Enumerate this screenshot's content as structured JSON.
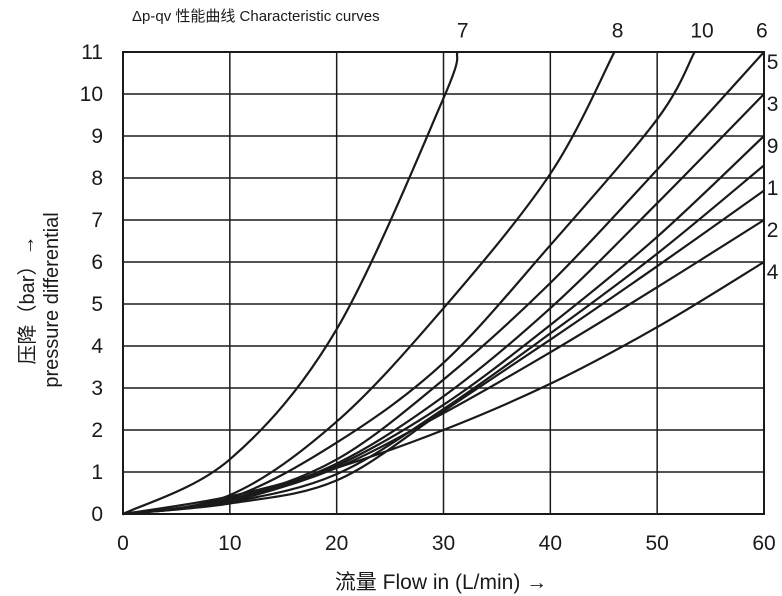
{
  "chart_data": {
    "type": "line",
    "title": "Δp-qv 性能曲线    Characteristic curves",
    "xlabel": "流量  Flow in (L/min) →",
    "ylabel_lines": [
      "压降（bar）→",
      "pressure differential"
    ],
    "xlim": [
      0,
      60
    ],
    "ylim": [
      0,
      11
    ],
    "x_ticks": [
      0,
      10,
      20,
      30,
      40,
      50,
      60
    ],
    "y_ticks": [
      0,
      1,
      2,
      3,
      4,
      5,
      6,
      7,
      8,
      9,
      10,
      11
    ],
    "grid": true,
    "series": [
      {
        "name": "7",
        "points": [
          [
            0,
            0
          ],
          [
            10,
            1.3
          ],
          [
            20,
            4.4
          ],
          [
            30,
            9.9
          ],
          [
            31.3,
            11
          ]
        ]
      },
      {
        "name": "8",
        "points": [
          [
            0,
            0
          ],
          [
            10,
            0.45
          ],
          [
            20,
            2.2
          ],
          [
            30,
            4.9
          ],
          [
            40,
            8.1
          ],
          [
            46,
            11
          ]
        ]
      },
      {
        "name": "10",
        "points": [
          [
            0,
            0
          ],
          [
            10,
            0.38
          ],
          [
            20,
            1.7
          ],
          [
            30,
            3.6
          ],
          [
            40,
            6.4
          ],
          [
            50,
            9.4
          ],
          [
            53.5,
            11
          ]
        ]
      },
      {
        "name": "6",
        "points": [
          [
            0,
            0
          ],
          [
            10,
            0.35
          ],
          [
            20,
            1.3
          ],
          [
            30,
            3.2
          ],
          [
            40,
            5.5
          ],
          [
            50,
            8.2
          ],
          [
            60,
            11
          ]
        ]
      },
      {
        "name": "5",
        "points": [
          [
            0,
            0
          ],
          [
            10,
            0.33
          ],
          [
            20,
            1.2
          ],
          [
            30,
            2.8
          ],
          [
            40,
            4.9
          ],
          [
            50,
            7.4
          ],
          [
            60,
            10
          ]
        ]
      },
      {
        "name": "3",
        "points": [
          [
            0,
            0
          ],
          [
            10,
            0.3
          ],
          [
            20,
            1.15
          ],
          [
            30,
            2.6
          ],
          [
            40,
            4.5
          ],
          [
            50,
            6.6
          ],
          [
            60,
            9
          ]
        ]
      },
      {
        "name": "9",
        "points": [
          [
            0,
            0
          ],
          [
            10,
            0.28
          ],
          [
            20,
            0.95
          ],
          [
            30,
            2.5
          ],
          [
            40,
            4.3
          ],
          [
            50,
            6.2
          ],
          [
            60,
            8.3
          ]
        ]
      },
      {
        "name": "1",
        "points": [
          [
            0,
            0
          ],
          [
            10,
            0.25
          ],
          [
            20,
            0.8
          ],
          [
            30,
            2.45
          ],
          [
            40,
            4.15
          ],
          [
            50,
            5.9
          ],
          [
            60,
            7.7
          ]
        ]
      },
      {
        "name": "2",
        "points": [
          [
            0,
            0
          ],
          [
            10,
            0.32
          ],
          [
            20,
            1.1
          ],
          [
            30,
            2.4
          ],
          [
            40,
            3.85
          ],
          [
            50,
            5.4
          ],
          [
            60,
            7
          ]
        ]
      },
      {
        "name": "4",
        "points": [
          [
            0,
            0
          ],
          [
            10,
            0.42
          ],
          [
            20,
            1.1
          ],
          [
            30,
            2.0
          ],
          [
            40,
            3.1
          ],
          [
            50,
            4.45
          ],
          [
            60,
            6
          ]
        ]
      }
    ],
    "curve_labels": [
      {
        "text": "7",
        "x": 31.8,
        "y": 11.35
      },
      {
        "text": "8",
        "x": 46.3,
        "y": 11.35
      },
      {
        "text": "10",
        "x": 54.2,
        "y": 11.35
      },
      {
        "text": "6",
        "x": 59.8,
        "y": 11.35
      },
      {
        "text": "5",
        "x": 60.8,
        "y": 10.6
      },
      {
        "text": "3",
        "x": 60.8,
        "y": 9.6
      },
      {
        "text": "9",
        "x": 60.8,
        "y": 8.6
      },
      {
        "text": "1",
        "x": 60.8,
        "y": 7.6
      },
      {
        "text": "2",
        "x": 60.8,
        "y": 6.6
      },
      {
        "text": "4",
        "x": 60.8,
        "y": 5.6
      }
    ],
    "colors": {
      "line": "#1a1a1a",
      "grid": "#1a1a1a"
    }
  }
}
